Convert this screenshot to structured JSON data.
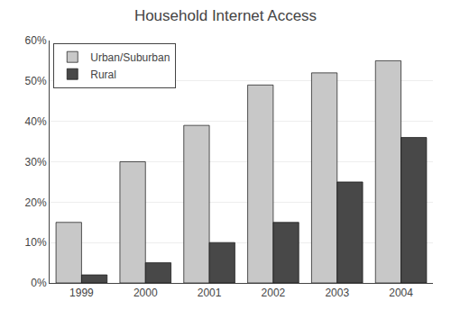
{
  "chart_data": {
    "type": "bar",
    "title": "Household Internet Access",
    "categories": [
      "1999",
      "2000",
      "2001",
      "2002",
      "2003",
      "2004"
    ],
    "series": [
      {
        "name": "Urban/Suburban",
        "color": "#c8c8c8",
        "values": [
          15,
          30,
          39,
          49,
          52,
          55
        ]
      },
      {
        "name": "Rural",
        "color": "#484848",
        "values": [
          2,
          5,
          10,
          15,
          25,
          36
        ]
      }
    ],
    "ylim": [
      0,
      60
    ],
    "yticks": [
      {
        "value": 0,
        "label": "0%"
      },
      {
        "value": 10,
        "label": "10%"
      },
      {
        "value": 20,
        "label": "20%"
      },
      {
        "value": 30,
        "label": "30%"
      },
      {
        "value": 40,
        "label": "40%"
      },
      {
        "value": 50,
        "label": "50%"
      },
      {
        "value": 60,
        "label": "60%"
      }
    ],
    "grid": true,
    "legend": "upper left"
  }
}
